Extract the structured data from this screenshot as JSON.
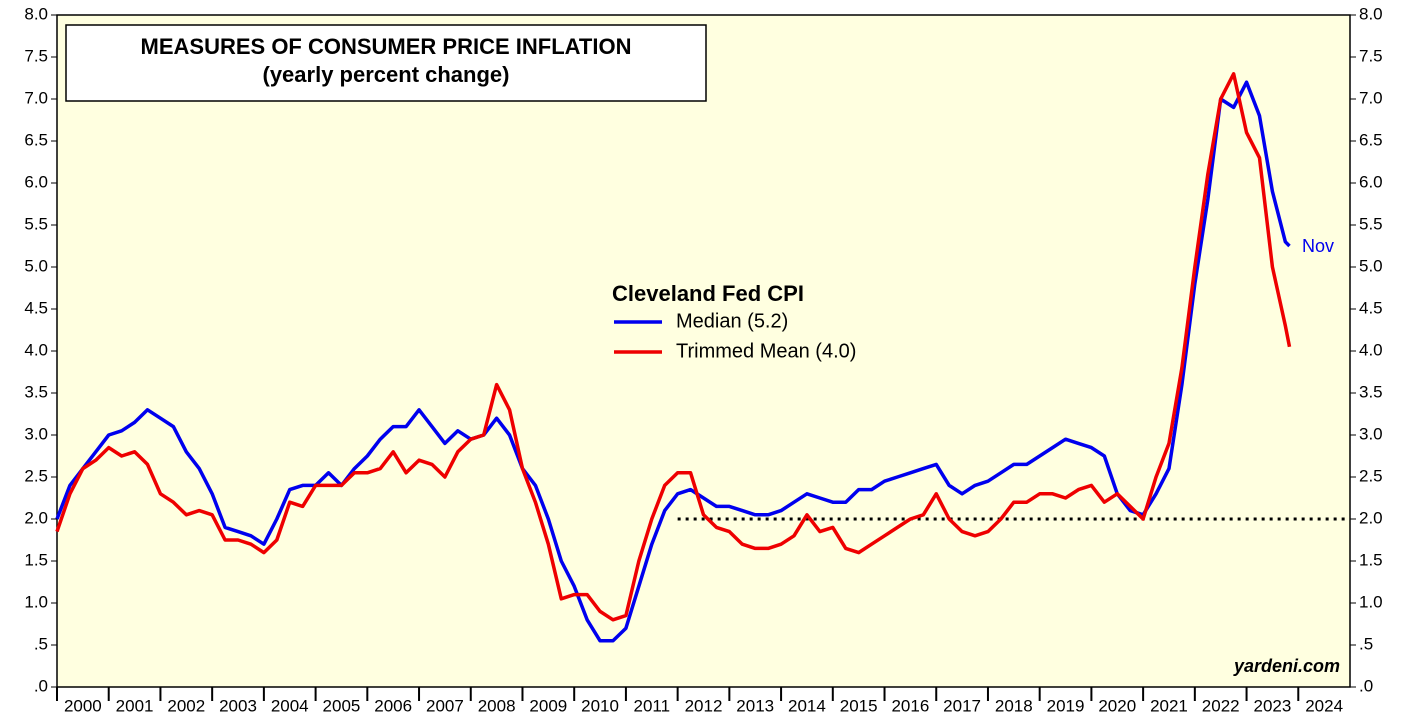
{
  "chart_data": {
    "type": "line",
    "title": "MEASURES OF CONSUMER PRICE INFLATION",
    "subtitle": "(yearly percent change)",
    "legend_title": "Cleveland Fed CPI",
    "annotations": [
      "Nov",
      "yardeni.com"
    ],
    "x": [
      2000,
      2000.25,
      2000.5,
      2000.75,
      2001,
      2001.25,
      2001.5,
      2001.75,
      2002,
      2002.25,
      2002.5,
      2002.75,
      2003,
      2003.25,
      2003.5,
      2003.75,
      2004,
      2004.25,
      2004.5,
      2004.75,
      2005,
      2005.25,
      2005.5,
      2005.75,
      2006,
      2006.25,
      2006.5,
      2006.75,
      2007,
      2007.25,
      2007.5,
      2007.75,
      2008,
      2008.25,
      2008.5,
      2008.75,
      2009,
      2009.25,
      2009.5,
      2009.75,
      2010,
      2010.25,
      2010.5,
      2010.75,
      2011,
      2011.25,
      2011.5,
      2011.75,
      2012,
      2012.25,
      2012.5,
      2012.75,
      2013,
      2013.25,
      2013.5,
      2013.75,
      2014,
      2014.25,
      2014.5,
      2014.75,
      2015,
      2015.25,
      2015.5,
      2015.75,
      2016,
      2016.25,
      2016.5,
      2016.75,
      2017,
      2017.25,
      2017.5,
      2017.75,
      2018,
      2018.25,
      2018.5,
      2018.75,
      2019,
      2019.25,
      2019.5,
      2019.75,
      2020,
      2020.25,
      2020.5,
      2020.75,
      2021,
      2021.25,
      2021.5,
      2021.75,
      2022,
      2022.25,
      2022.5,
      2022.75,
      2023,
      2023.25,
      2023.5,
      2023.75,
      2023.83
    ],
    "series": [
      {
        "name": "Median (5.2)",
        "color": "#0000ee",
        "values": [
          2.0,
          2.4,
          2.6,
          2.8,
          3.0,
          3.05,
          3.15,
          3.3,
          3.2,
          3.1,
          2.8,
          2.6,
          2.3,
          1.9,
          1.85,
          1.8,
          1.7,
          2.0,
          2.35,
          2.4,
          2.4,
          2.55,
          2.4,
          2.6,
          2.75,
          2.95,
          3.1,
          3.1,
          3.3,
          3.1,
          2.9,
          3.05,
          2.95,
          3.0,
          3.2,
          3.0,
          2.6,
          2.4,
          2.0,
          1.5,
          1.2,
          0.8,
          0.55,
          0.55,
          0.7,
          1.2,
          1.7,
          2.1,
          2.3,
          2.35,
          2.25,
          2.15,
          2.15,
          2.1,
          2.05,
          2.05,
          2.1,
          2.2,
          2.3,
          2.25,
          2.2,
          2.2,
          2.35,
          2.35,
          2.45,
          2.5,
          2.55,
          2.6,
          2.65,
          2.4,
          2.3,
          2.4,
          2.45,
          2.55,
          2.65,
          2.65,
          2.75,
          2.85,
          2.95,
          2.9,
          2.85,
          2.75,
          2.3,
          2.1,
          2.05,
          2.3,
          2.6,
          3.6,
          4.8,
          5.8,
          7.0,
          6.9,
          7.2,
          6.8,
          5.9,
          5.3,
          5.25
        ]
      },
      {
        "name": "Trimmed Mean (4.0)",
        "color": "#ee0000",
        "values": [
          1.85,
          2.3,
          2.6,
          2.7,
          2.85,
          2.75,
          2.8,
          2.65,
          2.3,
          2.2,
          2.05,
          2.1,
          2.05,
          1.75,
          1.75,
          1.7,
          1.6,
          1.75,
          2.2,
          2.15,
          2.4,
          2.4,
          2.4,
          2.55,
          2.55,
          2.6,
          2.8,
          2.55,
          2.7,
          2.65,
          2.5,
          2.8,
          2.95,
          3.0,
          3.6,
          3.3,
          2.6,
          2.2,
          1.7,
          1.05,
          1.1,
          1.1,
          0.9,
          0.8,
          0.85,
          1.5,
          2.0,
          2.4,
          2.55,
          2.55,
          2.05,
          1.9,
          1.85,
          1.7,
          1.65,
          1.65,
          1.7,
          1.8,
          2.05,
          1.85,
          1.9,
          1.65,
          1.6,
          1.7,
          1.8,
          1.9,
          2.0,
          2.05,
          2.3,
          2.0,
          1.85,
          1.8,
          1.85,
          2.0,
          2.2,
          2.2,
          2.3,
          2.3,
          2.25,
          2.35,
          2.4,
          2.2,
          2.3,
          2.15,
          2.0,
          2.5,
          2.9,
          3.8,
          5.0,
          6.1,
          7.0,
          7.3,
          6.6,
          6.3,
          5.0,
          4.3,
          4.05
        ]
      }
    ],
    "reference_line": {
      "y": 2.0,
      "x_start": 2012
    },
    "xlim": [
      2000,
      2025
    ],
    "xticks": [
      2000,
      2001,
      2002,
      2003,
      2004,
      2005,
      2006,
      2007,
      2008,
      2009,
      2010,
      2011,
      2012,
      2013,
      2014,
      2015,
      2016,
      2017,
      2018,
      2019,
      2020,
      2021,
      2022,
      2023,
      2024
    ],
    "ylim": [
      0,
      8
    ],
    "yticks": [
      {
        "value": 0,
        "label": ".0"
      },
      {
        "value": 0.5,
        "label": ".5"
      },
      {
        "value": 1,
        "label": "1.0"
      },
      {
        "value": 1.5,
        "label": "1.5"
      },
      {
        "value": 2,
        "label": "2.0"
      },
      {
        "value": 2.5,
        "label": "2.5"
      },
      {
        "value": 3,
        "label": "3.0"
      },
      {
        "value": 3.5,
        "label": "3.5"
      },
      {
        "value": 4,
        "label": "4.0"
      },
      {
        "value": 4.5,
        "label": "4.5"
      },
      {
        "value": 5,
        "label": "5.0"
      },
      {
        "value": 5.5,
        "label": "5.5"
      },
      {
        "value": 6,
        "label": "6.0"
      },
      {
        "value": 6.5,
        "label": "6.5"
      },
      {
        "value": 7,
        "label": "7.0"
      },
      {
        "value": 7.5,
        "label": "7.5"
      },
      {
        "value": 8,
        "label": "8.0"
      }
    ]
  }
}
